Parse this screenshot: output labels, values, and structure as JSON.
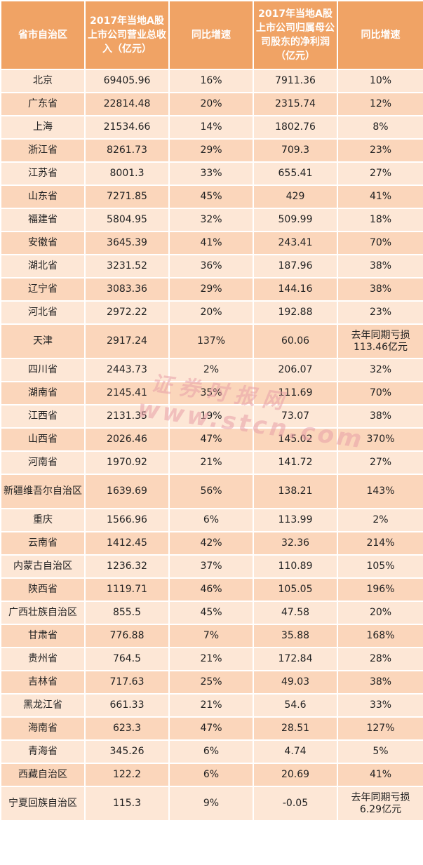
{
  "table": {
    "headers": [
      "省市自治区",
      "2017年当地A股上市公司营业总收入（亿元）",
      "同比增速",
      "2017年当地A股上市公司归属母公司股东的净利润（亿元）",
      "同比增速"
    ],
    "rows": [
      [
        "北京",
        "69405.96",
        "16%",
        "7911.36",
        "10%"
      ],
      [
        "广东省",
        "22814.48",
        "20%",
        "2315.74",
        "12%"
      ],
      [
        "上海",
        "21534.66",
        "14%",
        "1802.76",
        "8%"
      ],
      [
        "浙江省",
        "8261.73",
        "29%",
        "709.3",
        "23%"
      ],
      [
        "江苏省",
        "8001.3",
        "33%",
        "655.41",
        "27%"
      ],
      [
        "山东省",
        "7271.85",
        "45%",
        "429",
        "41%"
      ],
      [
        "福建省",
        "5804.95",
        "32%",
        "509.99",
        "18%"
      ],
      [
        "安徽省",
        "3645.39",
        "41%",
        "243.41",
        "70%"
      ],
      [
        "湖北省",
        "3231.52",
        "36%",
        "187.96",
        "38%"
      ],
      [
        "辽宁省",
        "3083.36",
        "29%",
        "144.16",
        "38%"
      ],
      [
        "河北省",
        "2972.22",
        "20%",
        "192.88",
        "23%"
      ],
      [
        "天津",
        "2917.24",
        "137%",
        "60.06",
        "去年同期亏损113.46亿元"
      ],
      [
        "四川省",
        "2443.73",
        "2%",
        "206.07",
        "32%"
      ],
      [
        "湖南省",
        "2145.41",
        "35%",
        "111.69",
        "70%"
      ],
      [
        "江西省",
        "2131.35",
        "19%",
        "73.07",
        "38%"
      ],
      [
        "山西省",
        "2026.46",
        "47%",
        "145.02",
        "370%"
      ],
      [
        "河南省",
        "1970.92",
        "21%",
        "141.72",
        "27%"
      ],
      [
        "新疆维吾尔自治区",
        "1639.69",
        "56%",
        "138.21",
        "143%"
      ],
      [
        "重庆",
        "1566.96",
        "6%",
        "113.99",
        "2%"
      ],
      [
        "云南省",
        "1412.45",
        "42%",
        "32.36",
        "214%"
      ],
      [
        "内蒙古自治区",
        "1236.32",
        "37%",
        "110.89",
        "105%"
      ],
      [
        "陕西省",
        "1119.71",
        "46%",
        "105.05",
        "196%"
      ],
      [
        "广西壮族自治区",
        "855.5",
        "45%",
        "47.58",
        "20%"
      ],
      [
        "甘肃省",
        "776.88",
        "7%",
        "35.88",
        "168%"
      ],
      [
        "贵州省",
        "764.5",
        "21%",
        "172.84",
        "28%"
      ],
      [
        "吉林省",
        "717.63",
        "25%",
        "49.03",
        "38%"
      ],
      [
        "黑龙江省",
        "661.33",
        "21%",
        "54.6",
        "33%"
      ],
      [
        "海南省",
        "623.3",
        "47%",
        "28.51",
        "127%"
      ],
      [
        "青海省",
        "345.26",
        "6%",
        "4.74",
        "5%"
      ],
      [
        "西藏自治区",
        "122.2",
        "6%",
        "20.69",
        "41%"
      ],
      [
        "宁夏回族自治区",
        "115.3",
        "9%",
        "-0.05",
        "去年同期亏损6.29亿元"
      ]
    ]
  },
  "watermark": {
    "line1": "证券时报网",
    "line2": "www.stcn.com"
  },
  "colors": {
    "header_bg": "#f0a365",
    "row_light": "#fde7d6",
    "row_dark": "#fbd6bb"
  }
}
